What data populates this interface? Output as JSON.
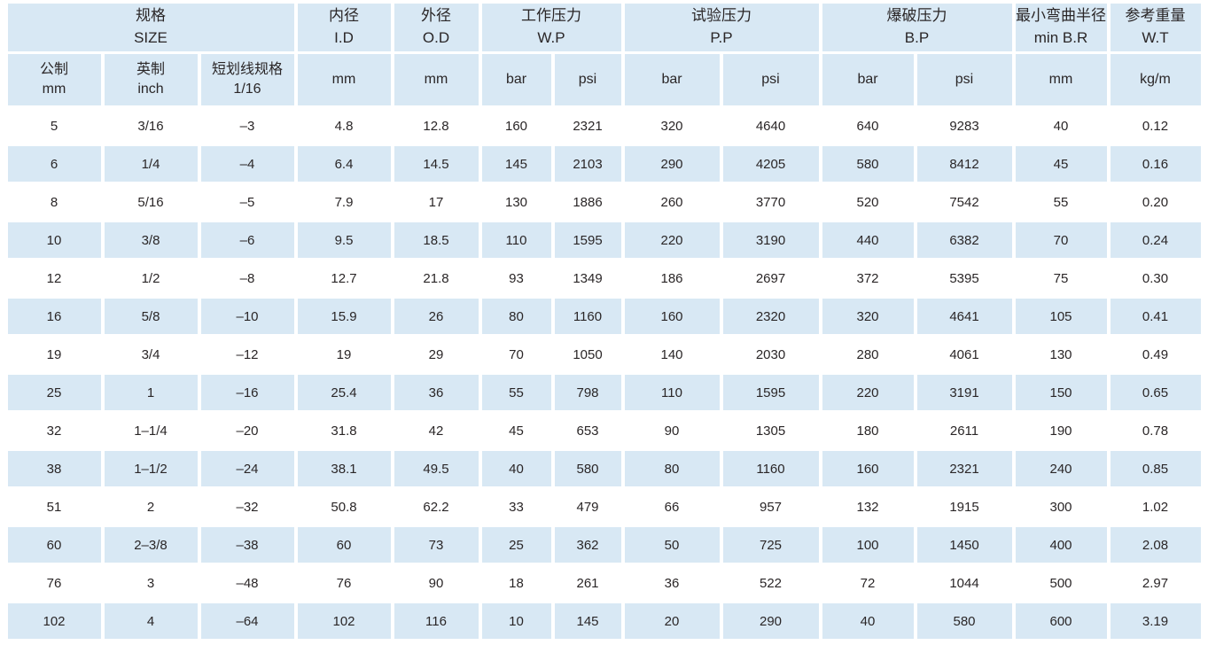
{
  "table": {
    "colors": {
      "cell_blue": "#d8e8f4",
      "row_white": "#ffffff",
      "text": "#2a2627"
    },
    "header_groups": [
      {
        "key": "size",
        "zh": "规格",
        "en": "SIZE",
        "colspan": 3
      },
      {
        "key": "id",
        "zh": "内径",
        "en": "I.D",
        "colspan": 1
      },
      {
        "key": "od",
        "zh": "外径",
        "en": "O.D",
        "colspan": 1
      },
      {
        "key": "wp",
        "zh": "工作压力",
        "en": "W.P",
        "colspan": 2
      },
      {
        "key": "pp",
        "zh": "试验压力",
        "en": "P.P",
        "colspan": 2
      },
      {
        "key": "bp",
        "zh": "爆破压力",
        "en": "B.P",
        "colspan": 2
      },
      {
        "key": "min-br",
        "zh": "最小弯曲半径",
        "en": "min B.R",
        "colspan": 1
      },
      {
        "key": "wt",
        "zh": "参考重量",
        "en": "W.T",
        "colspan": 1
      }
    ],
    "sub_headers": [
      {
        "key": "metric-mm",
        "zh": "公制",
        "en": "mm"
      },
      {
        "key": "inch",
        "zh": "英制",
        "en": "inch"
      },
      {
        "key": "dash-size",
        "zh": "短划线规格",
        "en": "1/16"
      },
      {
        "key": "id-mm",
        "label": "mm"
      },
      {
        "key": "od-mm",
        "label": "mm"
      },
      {
        "key": "wp-bar",
        "label": "bar"
      },
      {
        "key": "wp-psi",
        "label": "psi"
      },
      {
        "key": "pp-bar",
        "label": "bar"
      },
      {
        "key": "pp-psi",
        "label": "psi"
      },
      {
        "key": "bp-bar",
        "label": "bar"
      },
      {
        "key": "bp-psi",
        "label": "psi"
      },
      {
        "key": "min-br-mm",
        "label": "mm"
      },
      {
        "key": "wt-kgm",
        "label": "kg/m"
      }
    ],
    "rows": [
      [
        "5",
        "3/16",
        "–3",
        "4.8",
        "12.8",
        "160",
        "2321",
        "320",
        "4640",
        "640",
        "9283",
        "40",
        "0.12"
      ],
      [
        "6",
        "1/4",
        "–4",
        "6.4",
        "14.5",
        "145",
        "2103",
        "290",
        "4205",
        "580",
        "8412",
        "45",
        "0.16"
      ],
      [
        "8",
        "5/16",
        "–5",
        "7.9",
        "17",
        "130",
        "1886",
        "260",
        "3770",
        "520",
        "7542",
        "55",
        "0.20"
      ],
      [
        "10",
        "3/8",
        "–6",
        "9.5",
        "18.5",
        "110",
        "1595",
        "220",
        "3190",
        "440",
        "6382",
        "70",
        "0.24"
      ],
      [
        "12",
        "1/2",
        "–8",
        "12.7",
        "21.8",
        "93",
        "1349",
        "186",
        "2697",
        "372",
        "5395",
        "75",
        "0.30"
      ],
      [
        "16",
        "5/8",
        "–10",
        "15.9",
        "26",
        "80",
        "1160",
        "160",
        "2320",
        "320",
        "4641",
        "105",
        "0.41"
      ],
      [
        "19",
        "3/4",
        "–12",
        "19",
        "29",
        "70",
        "1050",
        "140",
        "2030",
        "280",
        "4061",
        "130",
        "0.49"
      ],
      [
        "25",
        "1",
        "–16",
        "25.4",
        "36",
        "55",
        "798",
        "110",
        "1595",
        "220",
        "3191",
        "150",
        "0.65"
      ],
      [
        "32",
        "1–1/4",
        "–20",
        "31.8",
        "42",
        "45",
        "653",
        "90",
        "1305",
        "180",
        "2611",
        "190",
        "0.78"
      ],
      [
        "38",
        "1–1/2",
        "–24",
        "38.1",
        "49.5",
        "40",
        "580",
        "80",
        "1160",
        "160",
        "2321",
        "240",
        "0.85"
      ],
      [
        "51",
        "2",
        "–32",
        "50.8",
        "62.2",
        "33",
        "479",
        "66",
        "957",
        "132",
        "1915",
        "300",
        "1.02"
      ],
      [
        "60",
        "2–3/8",
        "–38",
        "60",
        "73",
        "25",
        "362",
        "50",
        "725",
        "100",
        "1450",
        "400",
        "2.08"
      ],
      [
        "76",
        "3",
        "–48",
        "76",
        "90",
        "18",
        "261",
        "36",
        "522",
        "72",
        "1044",
        "500",
        "2.97"
      ],
      [
        "102",
        "4",
        "–64",
        "102",
        "116",
        "10",
        "145",
        "20",
        "290",
        "40",
        "580",
        "600",
        "3.19"
      ]
    ]
  }
}
